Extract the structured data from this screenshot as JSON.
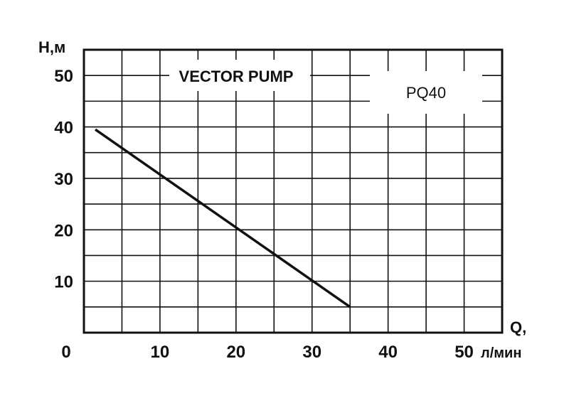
{
  "chart_data": {
    "type": "line",
    "title": "VECTOR PUMP",
    "model": "PQ40",
    "ylabel": "H,м",
    "xlabel": "Q,",
    "xunit": "л/мин",
    "origin_label": "0",
    "xlim": [
      0,
      55
    ],
    "ylim": [
      0,
      55
    ],
    "x_ticks": [
      "10",
      "20",
      "30",
      "40",
      "50"
    ],
    "y_ticks": [
      "10",
      "20",
      "30",
      "40",
      "50"
    ],
    "grid": true,
    "series": [
      {
        "x": [
          1.5,
          35
        ],
        "y": [
          39.5,
          5
        ],
        "color": "#111111"
      }
    ]
  }
}
